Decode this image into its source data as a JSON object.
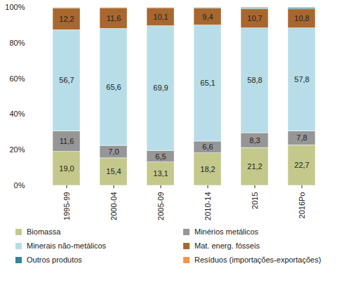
{
  "chart_data": {
    "type": "bar",
    "stacked": true,
    "grid": false,
    "legend": "bottom",
    "categories": [
      "1995-99",
      "2000-04",
      "2005-09",
      "2010-14",
      "2015",
      "2016Po"
    ],
    "ylim": [
      0,
      100
    ],
    "yticks": [
      {
        "value": 0,
        "label": "0%"
      },
      {
        "value": 20,
        "label": "20%"
      },
      {
        "value": 40,
        "label": "40%"
      },
      {
        "value": 60,
        "label": "60%"
      },
      {
        "value": 80,
        "label": "80%"
      },
      {
        "value": 100,
        "label": "100%"
      }
    ],
    "series": [
      {
        "name": "Biomassa",
        "color": "#c4c98b",
        "data_labels": true,
        "values": [
          19.0,
          15.4,
          13.1,
          18.2,
          21.2,
          22.7
        ],
        "value_labels": [
          "19,0",
          "15,4",
          "13,1",
          "18,2",
          "21,2",
          "22,7"
        ]
      },
      {
        "name": "Minérios metálicos",
        "color": "#969696",
        "data_labels": true,
        "values": [
          11.6,
          7.0,
          6.5,
          6.6,
          8.3,
          7.8
        ],
        "value_labels": [
          "11,6",
          "7,0",
          "6,5",
          "6,6",
          "8,3",
          "7,8"
        ]
      },
      {
        "name": "Minerais não-metálicos",
        "color": "#b7dde8",
        "data_labels": true,
        "values": [
          56.7,
          65.6,
          69.9,
          65.1,
          58.8,
          57.8
        ],
        "value_labels": [
          "56,7",
          "65,6",
          "69,9",
          "65,1",
          "58,8",
          "57,8"
        ]
      },
      {
        "name": "Mat. energ. fósseis",
        "color": "#a8672f",
        "data_labels": true,
        "values": [
          12.2,
          11.6,
          10.1,
          9.4,
          10.7,
          10.8
        ],
        "value_labels": [
          "12,2",
          "11,6",
          "10,1",
          "9,4",
          "10,7",
          "10,8"
        ]
      },
      {
        "name": "Outros produtos",
        "color": "#31849b",
        "data_labels": false,
        "values": [
          0.3,
          0.2,
          0.2,
          0.5,
          0.6,
          0.6
        ]
      },
      {
        "name": "Resíduos (importações-exportações)",
        "color": "#f79646",
        "data_labels": false,
        "values": [
          0.2,
          0.2,
          0.2,
          0.2,
          0.4,
          0.3
        ]
      }
    ]
  }
}
